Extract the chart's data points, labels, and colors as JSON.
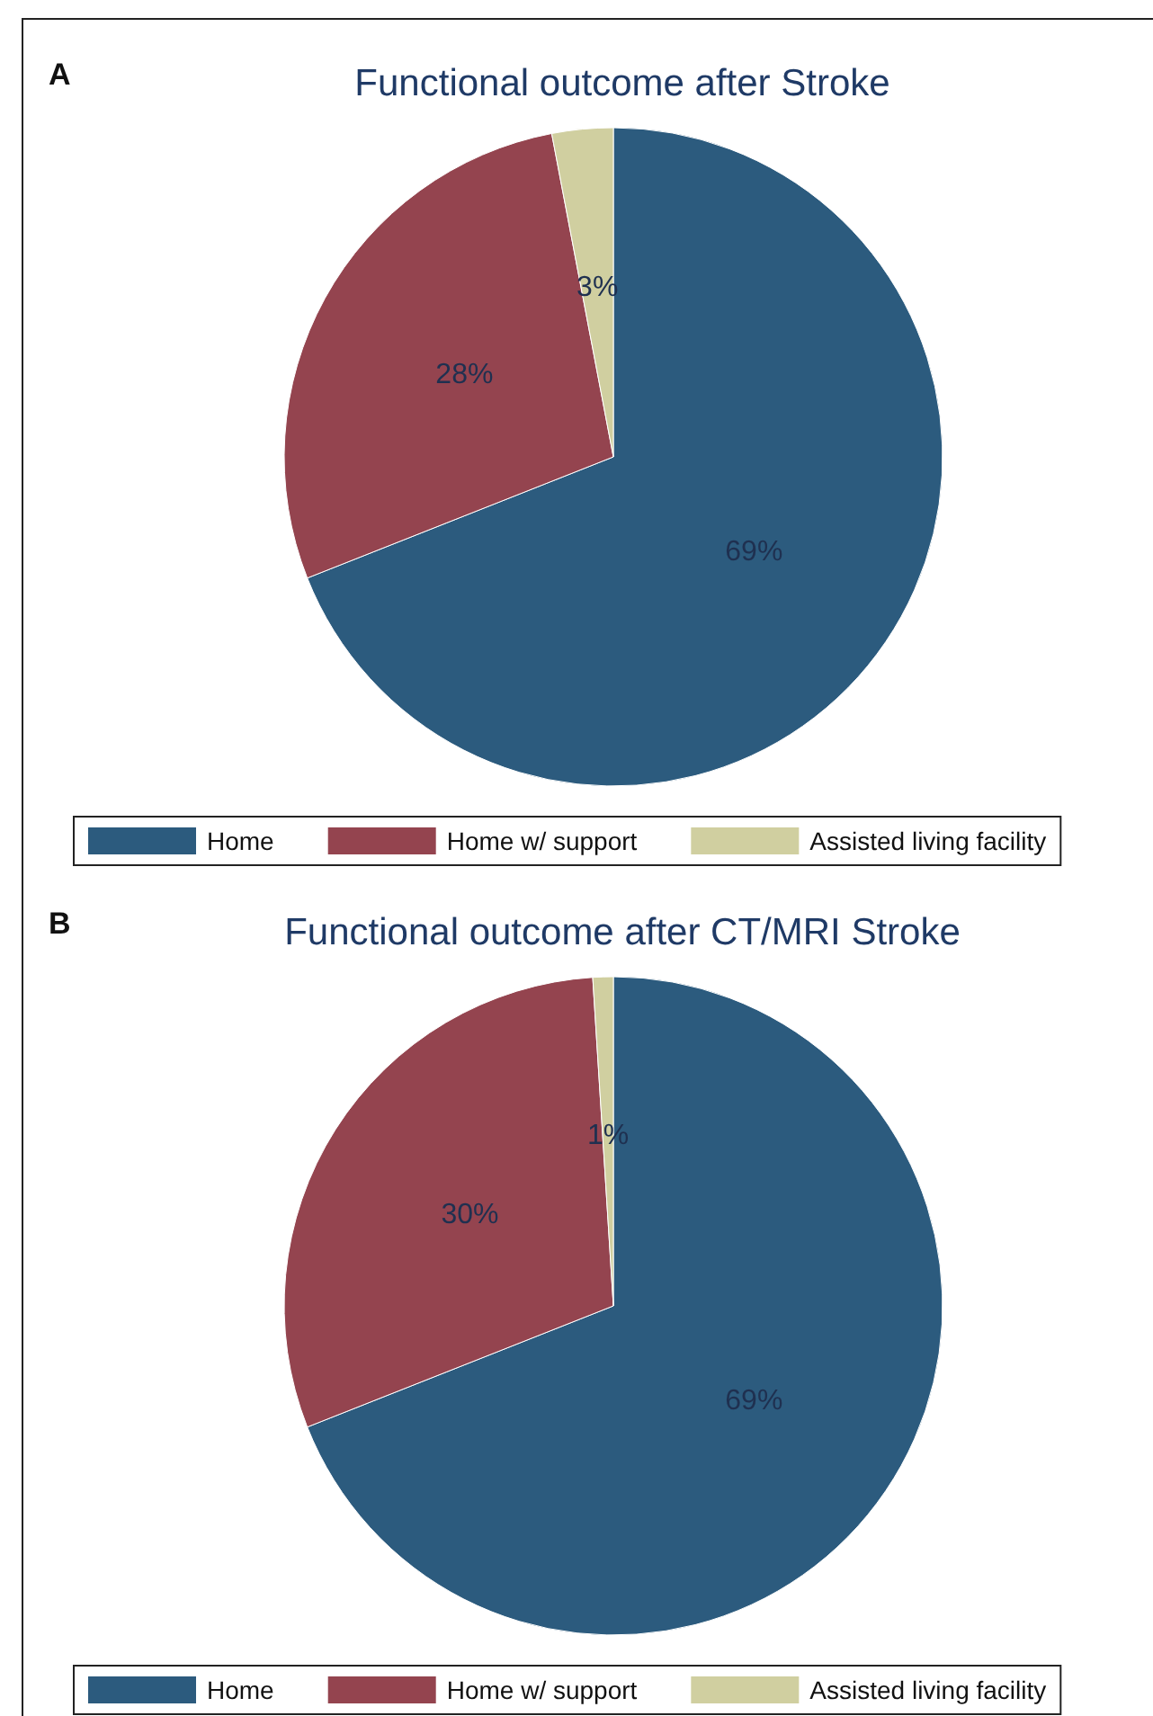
{
  "chart_data": [
    {
      "type": "pie",
      "title": "Functional outcome after Stroke",
      "annotations": [
        "A"
      ],
      "categories": [
        "Home",
        "Home w/ support",
        "Assisted living facility"
      ],
      "values": [
        69,
        28,
        3
      ],
      "value_labels": [
        "69%",
        "28%",
        "3%"
      ],
      "colors": [
        "#2c5b7e",
        "#94444f",
        "#d0cfa0"
      ],
      "legend": "bottom"
    },
    {
      "type": "pie",
      "title": "Functional outcome after CT/MRI Stroke",
      "annotations": [
        "B"
      ],
      "categories": [
        "Home",
        "Home w/ support",
        "Assisted living facility"
      ],
      "values": [
        69,
        30,
        1
      ],
      "value_labels": [
        "69%",
        "30%",
        "1%"
      ],
      "colors": [
        "#2c5b7e",
        "#94444f",
        "#d0cfa0"
      ],
      "legend": "bottom"
    }
  ]
}
